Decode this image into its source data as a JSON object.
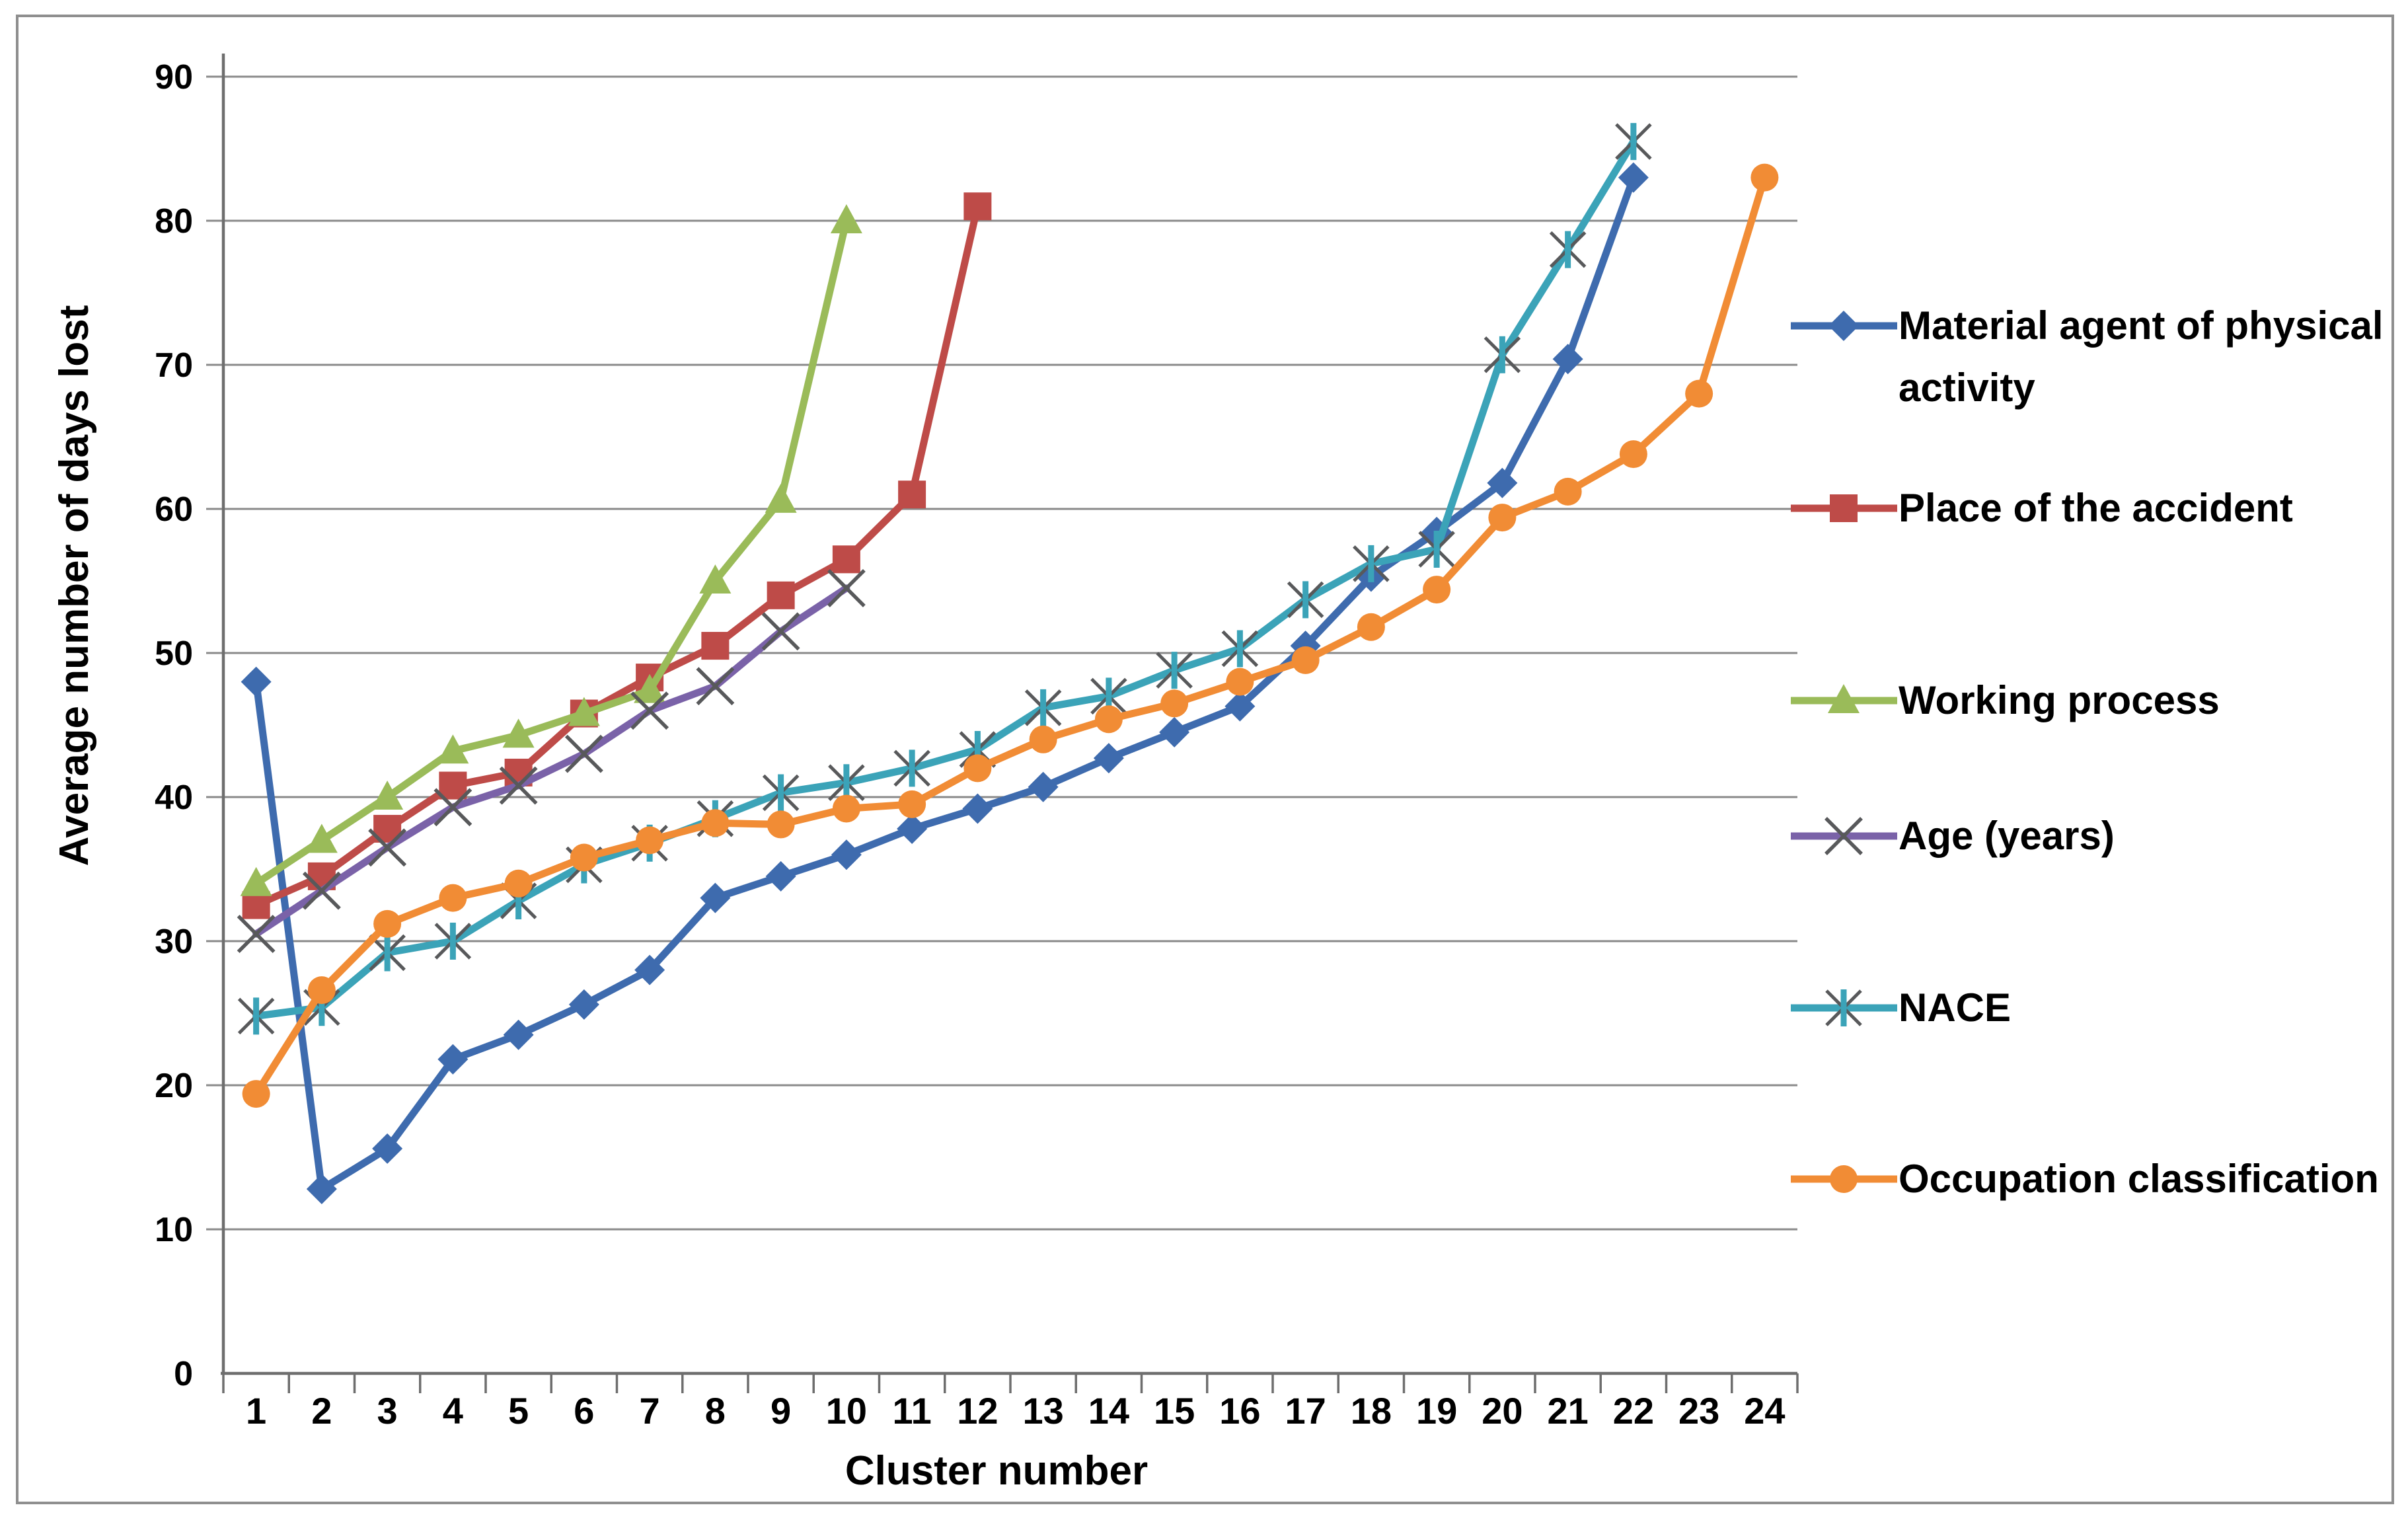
{
  "figure": {
    "y_axis_title": "Average number of days lost",
    "x_axis_title": "Cluster number"
  },
  "chart_data": {
    "type": "line",
    "title": "",
    "xlabel": "Cluster number",
    "ylabel": "Average number of days lost",
    "categories": [
      1,
      2,
      3,
      4,
      5,
      6,
      7,
      8,
      9,
      10,
      11,
      12,
      13,
      14,
      15,
      16,
      17,
      18,
      19,
      20,
      21,
      22,
      23,
      24
    ],
    "ylim": [
      0,
      90
    ],
    "yticks": [
      0,
      10,
      20,
      30,
      40,
      50,
      60,
      70,
      80,
      90
    ],
    "grid": "horizontal",
    "legend_position": "right",
    "series": [
      {
        "name": "Material agent of physical activity",
        "color": "#3E6BAE",
        "marker": "diamond",
        "values": [
          48,
          12.8,
          15.6,
          21.8,
          23.5,
          25.6,
          28,
          33,
          34.5,
          36,
          37.8,
          39.2,
          40.7,
          42.7,
          44.5,
          46.3,
          50.5,
          55.3,
          58.4,
          61.8,
          70.4,
          83
        ]
      },
      {
        "name": "Place of the accident",
        "color": "#BE4B48",
        "marker": "square",
        "values": [
          32.5,
          34.5,
          37.8,
          40.8,
          41.7,
          45.8,
          48.3,
          50.5,
          54,
          56.5,
          61,
          81
        ]
      },
      {
        "name": "Working process",
        "color": "#9ABB59",
        "marker": "triangle",
        "values": [
          34,
          37,
          40,
          43.2,
          44.3,
          45.8,
          47.4,
          55,
          60.6,
          80
        ]
      },
      {
        "name": "Age (years)",
        "color": "#7A62A8",
        "marker": "x",
        "values": [
          30.5,
          33.5,
          36.5,
          39.3,
          40.8,
          43,
          46,
          47.7,
          51.5,
          54.5
        ]
      },
      {
        "name": "NACE",
        "color": "#3BA3B8",
        "marker": "asterisk",
        "values": [
          24.8,
          25.4,
          29.2,
          30,
          32.8,
          35.3,
          36.8,
          38.5,
          40.3,
          41,
          42,
          43.3,
          46.2,
          47,
          48.8,
          50.3,
          53.7,
          56.2,
          57.2,
          70.7,
          78,
          85.5
        ]
      },
      {
        "name": "Occupation classification",
        "color": "#F18C35",
        "marker": "circle",
        "values": [
          19.4,
          26.6,
          31.2,
          33,
          34,
          35.8,
          37,
          38.2,
          38.1,
          39.2,
          39.5,
          42,
          44,
          45.4,
          46.5,
          48,
          49.5,
          51.8,
          54.4,
          59.4,
          61.2,
          63.8,
          68,
          83
        ]
      }
    ],
    "colors": {
      "gridline": "#8a8a8a",
      "axis": "#6e6e6e",
      "border": "#8f8f8f",
      "text": "#000000",
      "marker_stroke": "#58595b"
    }
  }
}
